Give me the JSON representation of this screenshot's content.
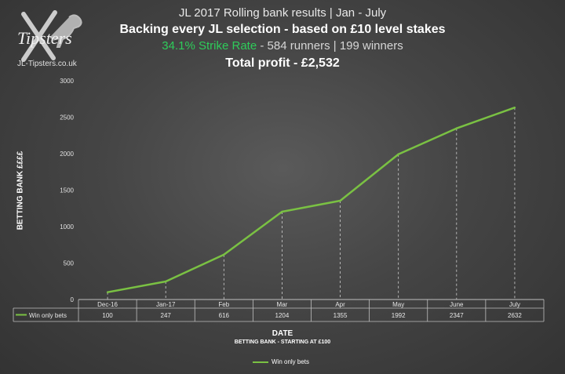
{
  "header": {
    "title": "JL 2017 Rolling bank results | Jan - July",
    "subtitle": "Backing every JL selection - based on £10 level stakes",
    "strike_rate": "34.1% Strike Rate",
    "runners_winners": " - 584 runners | 199 winners",
    "total_profit": "Total profit - £2,532"
  },
  "logo": {
    "brand": "Tipsters",
    "site": "JL-Tipsters.co.uk"
  },
  "chart_data": {
    "type": "line",
    "categories": [
      "Dec-16",
      "Jan-17",
      "Feb",
      "Mar",
      "Apr",
      "May",
      "June",
      "July"
    ],
    "series": [
      {
        "name": "Win only bets",
        "values": [
          100,
          247,
          616,
          1204,
          1355,
          1992,
          2347,
          2632
        ],
        "color": "#7ac143"
      }
    ],
    "ylim": [
      0,
      3000
    ],
    "yticks": [
      "0",
      "500",
      "1000",
      "1500",
      "2000",
      "2500",
      "3000"
    ],
    "ylabel": "BETTING BANK ££££",
    "xlabel": "DATE",
    "xsublabel": "BETTING BANK - STARTING AT £100",
    "data_table": true,
    "table_row_label": "Win only bets",
    "table_values": [
      "100",
      "247",
      "616",
      "1204",
      "1355",
      "1992",
      "2347",
      "2632"
    ],
    "drop_lines": true,
    "grid": false,
    "legend": "bottom"
  }
}
